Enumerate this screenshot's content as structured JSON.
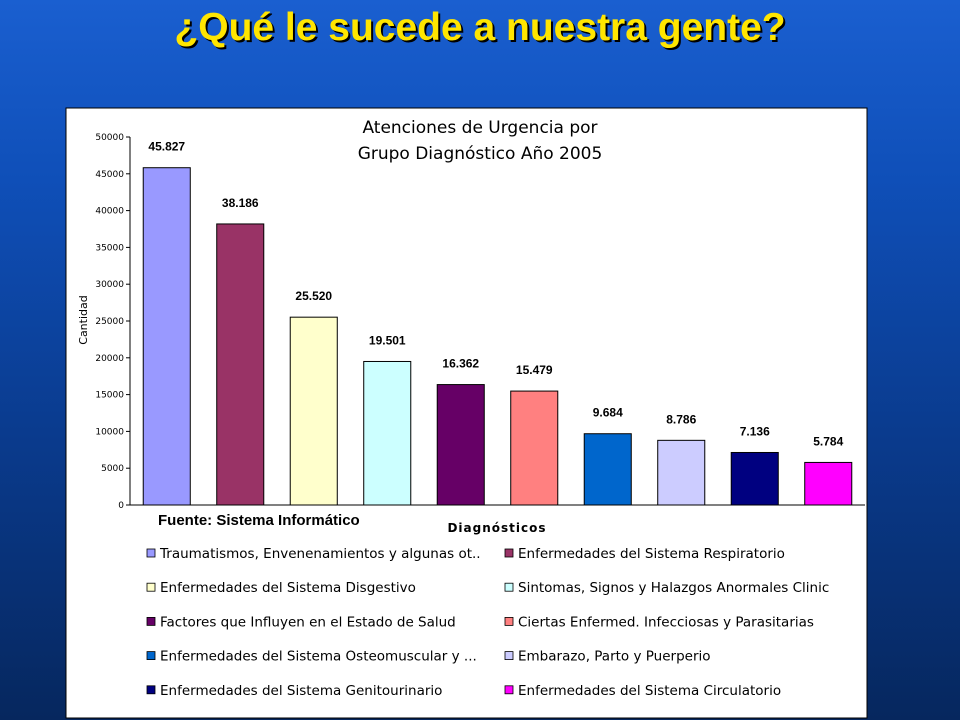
{
  "slide": {
    "title": "¿Qué le sucede a nuestra gente?"
  },
  "chart_data": {
    "type": "bar",
    "title_line1": "Atenciones de Urgencia por",
    "title_line2": "Grupo Diagnóstico Año 2005",
    "xlabel": "Diagnósticos",
    "ylabel": "Cantidad",
    "ylim": [
      0,
      50000
    ],
    "yticks": [
      "0",
      "5000",
      "10000",
      "15000",
      "20000",
      "25000",
      "30000",
      "35000",
      "40000",
      "45000",
      "50000"
    ],
    "source": "Fuente: Sistema Informático",
    "legend_position": "bottom",
    "grid": false,
    "series": [
      {
        "name": "Traumatismos, Envenenamientos y algunas ot..",
        "value": 45827,
        "label": "45.827",
        "color": "#9999ff"
      },
      {
        "name": "Enfermedades del Sistema Respiratorio",
        "value": 38186,
        "label": "38.186",
        "color": "#993366"
      },
      {
        "name": "Enfermedades del Sistema Disgestivo",
        "value": 25520,
        "label": "25.520",
        "color": "#ffffcc"
      },
      {
        "name": "Sintomas, Signos y Halazgos Anormales Clinic",
        "value": 19501,
        "label": "19.501",
        "color": "#ccffff"
      },
      {
        "name": "Factores que Influyen en el Estado de Salud",
        "value": 16362,
        "label": "16.362",
        "color": "#660066"
      },
      {
        "name": "Ciertas Enfermed. Infecciosas y Parasitarias",
        "value": 15479,
        "label": "15.479",
        "color": "#ff8080"
      },
      {
        "name": "Enfermedades del Sistema Osteomuscular y ...",
        "value": 9684,
        "label": "9.684",
        "color": "#0066cc"
      },
      {
        "name": "Embarazo, Parto y Puerperio",
        "value": 8786,
        "label": "8.786",
        "color": "#ccccff"
      },
      {
        "name": "Enfermedades del Sistema Genitourinario",
        "value": 7136,
        "label": "7.136",
        "color": "#000080"
      },
      {
        "name": "Enfermedades del Sistema Circulatorio",
        "value": 5784,
        "label": "5.784",
        "color": "#ff00ff"
      }
    ]
  }
}
